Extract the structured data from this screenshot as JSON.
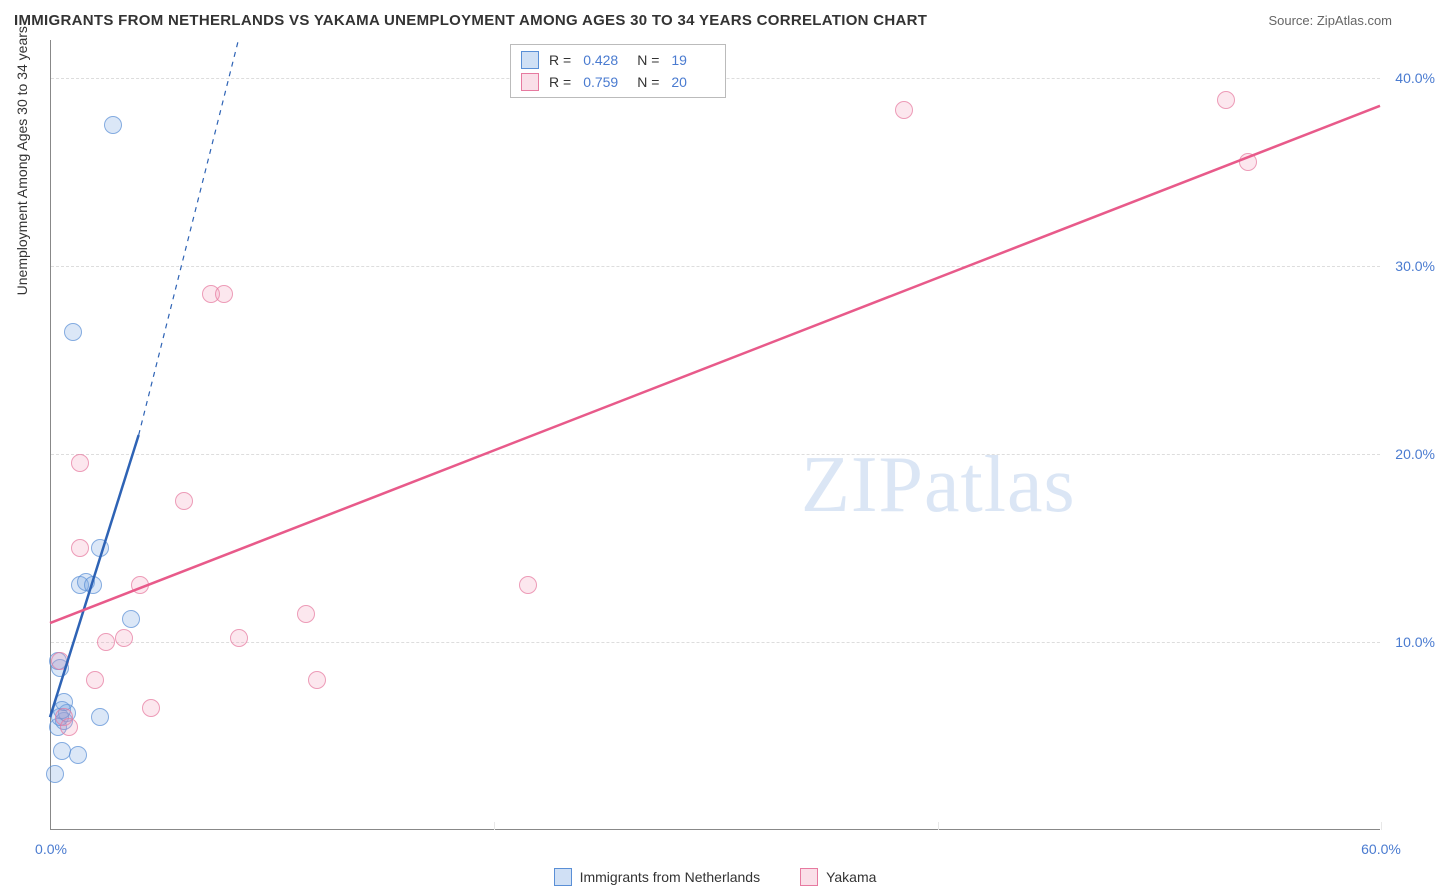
{
  "header": {
    "title": "IMMIGRANTS FROM NETHERLANDS VS YAKAMA UNEMPLOYMENT AMONG AGES 30 TO 34 YEARS CORRELATION CHART",
    "source": "Source: ZipAtlas.com"
  },
  "watermark": "ZIPatlas",
  "chart": {
    "type": "scatter",
    "y_axis_title": "Unemployment Among Ages 30 to 34 years",
    "background_color": "#ffffff",
    "grid_color": "#dddddd",
    "axis_color": "#888888",
    "xlim": [
      0,
      60
    ],
    "ylim": [
      0,
      42
    ],
    "xticks": [
      {
        "v": 0,
        "label": "0.0%"
      },
      {
        "v": 60,
        "label": "60.0%"
      }
    ],
    "yticks": [
      {
        "v": 10,
        "label": "10.0%"
      },
      {
        "v": 20,
        "label": "20.0%"
      },
      {
        "v": 30,
        "label": "30.0%"
      },
      {
        "v": 40,
        "label": "40.0%"
      }
    ],
    "grid_y": [
      10,
      20,
      30,
      40
    ],
    "grid_x": [
      20,
      40,
      60
    ],
    "series": [
      {
        "name": "Immigrants from Netherlands",
        "color_fill": "rgba(120,165,225,0.35)",
        "color_stroke": "#5a8fd6",
        "class": "blue",
        "marker_radius": 9,
        "R": "0.428",
        "N": "19",
        "trend": {
          "x1": 0,
          "y1": 6.0,
          "x2": 4.0,
          "y2": 21.0,
          "dash_x2": 8.5,
          "dash_y2": 42.0,
          "stroke": "#2e63b5",
          "width": 2.5
        },
        "points": [
          {
            "x": 0.2,
            "y": 3.0
          },
          {
            "x": 0.5,
            "y": 4.2
          },
          {
            "x": 1.2,
            "y": 4.0
          },
          {
            "x": 0.3,
            "y": 5.5
          },
          {
            "x": 0.6,
            "y": 5.8
          },
          {
            "x": 0.4,
            "y": 6.0
          },
          {
            "x": 0.7,
            "y": 6.2
          },
          {
            "x": 0.5,
            "y": 6.4
          },
          {
            "x": 2.2,
            "y": 6.0
          },
          {
            "x": 0.4,
            "y": 8.6
          },
          {
            "x": 0.3,
            "y": 9.0
          },
          {
            "x": 3.6,
            "y": 11.2
          },
          {
            "x": 1.3,
            "y": 13.0
          },
          {
            "x": 1.6,
            "y": 13.2
          },
          {
            "x": 1.9,
            "y": 13.0
          },
          {
            "x": 2.2,
            "y": 15.0
          },
          {
            "x": 1.0,
            "y": 26.5
          },
          {
            "x": 2.8,
            "y": 37.5
          },
          {
            "x": 0.6,
            "y": 6.8
          }
        ]
      },
      {
        "name": "Yakama",
        "color_fill": "rgba(240,150,180,0.30)",
        "color_stroke": "#e77aa0",
        "class": "pink",
        "marker_radius": 9,
        "R": "0.759",
        "N": "20",
        "trend": {
          "x1": 0,
          "y1": 11.0,
          "x2": 60,
          "y2": 38.5,
          "stroke": "#e85a8a",
          "width": 2.5
        },
        "points": [
          {
            "x": 4.5,
            "y": 6.5
          },
          {
            "x": 2.0,
            "y": 8.0
          },
          {
            "x": 0.4,
            "y": 9.0
          },
          {
            "x": 12.0,
            "y": 8.0
          },
          {
            "x": 2.5,
            "y": 10.0
          },
          {
            "x": 3.3,
            "y": 10.2
          },
          {
            "x": 8.5,
            "y": 10.2
          },
          {
            "x": 11.5,
            "y": 11.5
          },
          {
            "x": 21.5,
            "y": 13.0
          },
          {
            "x": 4.0,
            "y": 13.0
          },
          {
            "x": 1.3,
            "y": 15.0
          },
          {
            "x": 6.0,
            "y": 17.5
          },
          {
            "x": 1.3,
            "y": 19.5
          },
          {
            "x": 7.2,
            "y": 28.5
          },
          {
            "x": 7.8,
            "y": 28.5
          },
          {
            "x": 54.0,
            "y": 35.5
          },
          {
            "x": 53.0,
            "y": 38.8
          },
          {
            "x": 38.5,
            "y": 38.3
          },
          {
            "x": 0.6,
            "y": 6.0
          },
          {
            "x": 0.8,
            "y": 5.5
          }
        ]
      }
    ],
    "legend_bottom": [
      {
        "class": "blue",
        "label": "Immigrants from Netherlands"
      },
      {
        "class": "pink",
        "label": "Yakama"
      }
    ]
  }
}
